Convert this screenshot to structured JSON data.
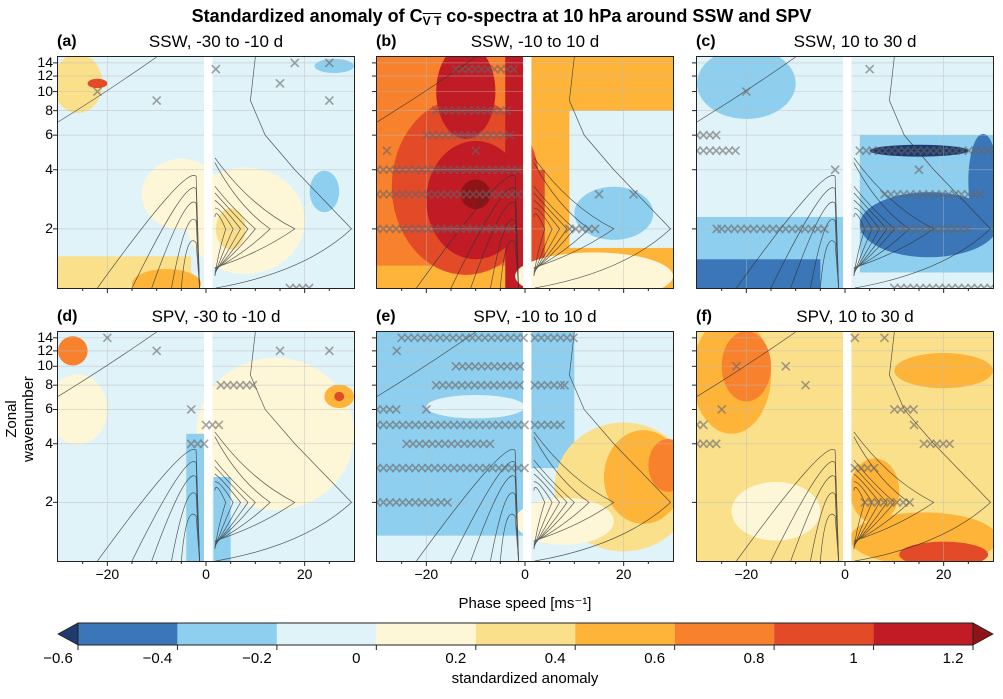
{
  "title_main": "Standardized anomaly of C",
  "title_sub": "V T",
  "title_rest": " co-spectra at 10 hPa around SSW and SPV",
  "colors": {
    "under": "#1e3a6e",
    "b-0.6": "#3a76b8",
    "b-0.4": "#8ecfef",
    "b-0.2": "#e0f3f8",
    "b0": "#fdf7d8",
    "b0.2": "#fbe08b",
    "b0.4": "#feb439",
    "b0.6": "#f8812d",
    "b0.8": "#e34a28",
    "b1": "#c11b25",
    "over": "#8f1418"
  },
  "chart_data": {
    "type": "heatmap",
    "title": "Standardized anomaly of C_VT co-spectra at 10 hPa around SSW and SPV",
    "xlabel": "Phase speed [ms⁻¹]",
    "ylabel": "Zonal wavenumber",
    "xlim": [
      -30,
      30
    ],
    "ylim": [
      1,
      15
    ],
    "yscale": "log",
    "xticks": [
      "−20",
      "0",
      "20"
    ],
    "xtick_values": [
      -20,
      0,
      20
    ],
    "yticks": [
      "2",
      "4",
      "6",
      "8",
      "10",
      "12",
      "14"
    ],
    "ytick_values": [
      2,
      4,
      6,
      8,
      10,
      12,
      14
    ],
    "colorbar": {
      "label": "standardized anomaly",
      "levels": [
        -0.6,
        -0.4,
        -0.2,
        0,
        0.2,
        0.4,
        0.6,
        0.8,
        1,
        1.2
      ],
      "tick_labels": [
        "−0.6",
        "−0.4",
        "−0.2",
        "0",
        "0.2",
        "0.4",
        "0.6",
        "0.8",
        "1",
        "1.2"
      ],
      "extend": "both"
    },
    "panels": [
      {
        "label": "(a)",
        "title": "SSW, -30 to -10 d",
        "bg": "b-0.2",
        "fields": [
          {
            "shape": "rect",
            "c": [
              -30,
              -3
            ],
            "k": [
              1,
              1.45
            ],
            "level": "b0.2"
          },
          {
            "shape": "ell",
            "c": -8,
            "k": 1.05,
            "rc": 7,
            "rk": 0.25,
            "level": "b0.4"
          },
          {
            "shape": "ell",
            "c": 8,
            "k": 2.2,
            "rc": 12,
            "rk": 0.9,
            "level": "b0"
          },
          {
            "shape": "ell",
            "c": -5,
            "k": 3,
            "rc": 8,
            "rk": 0.6,
            "level": "b0"
          },
          {
            "shape": "ell",
            "c": 5,
            "k": 2,
            "rc": 3,
            "rk": 0.35,
            "level": "b0.2"
          },
          {
            "shape": "ell",
            "c": -26,
            "k": 11,
            "rc": 5,
            "rk": 0.5,
            "level": "b0.2"
          },
          {
            "shape": "ell",
            "c": -22,
            "k": 11,
            "rc": 2,
            "rk": 0.08,
            "level": "b0.8"
          },
          {
            "shape": "ell",
            "c": 24,
            "k": 3.1,
            "rc": 3,
            "rk": 0.35,
            "level": "b-0.4"
          },
          {
            "shape": "ell",
            "c": 26,
            "k": 13.5,
            "rc": 4,
            "rk": 0.12,
            "level": "b-0.4"
          }
        ],
        "hatches": [
          {
            "k": 1,
            "c": [
              17,
              21
            ]
          }
        ],
        "marks": [
          [
            -22,
            10
          ],
          [
            -10,
            9
          ],
          [
            2,
            13
          ],
          [
            15,
            11
          ],
          [
            18,
            14
          ],
          [
            25,
            14
          ],
          [
            25,
            9
          ]
        ]
      },
      {
        "label": "(b)",
        "title": "SSW, -10 to 10 d",
        "bg": "b0.4",
        "fields": [
          {
            "shape": "rect",
            "c": [
              -30,
              0
            ],
            "k": [
              1.3,
              15
            ],
            "level": "b0.6"
          },
          {
            "shape": "ell",
            "c": -12,
            "k": 3.3,
            "rc": 15,
            "rk": 1.5,
            "level": "b0.8"
          },
          {
            "shape": "ell",
            "c": -10,
            "k": 2.8,
            "rc": 10,
            "rk": 1.0,
            "level": "b1"
          },
          {
            "shape": "ell",
            "c": -12,
            "k": 10,
            "rc": 6,
            "rk": 0.8,
            "level": "b1"
          },
          {
            "shape": "ell",
            "c": -10,
            "k": 3,
            "rc": 3,
            "rk": 0.25,
            "level": "over"
          },
          {
            "shape": "rect",
            "c": [
              -4,
              0
            ],
            "k": [
              1,
              15
            ],
            "level": "b1"
          },
          {
            "shape": "rect",
            "c": [
              1,
              4
            ],
            "k": [
              1,
              4
            ],
            "level": "b0.8"
          },
          {
            "shape": "rect",
            "c": [
              9,
              30
            ],
            "k": [
              1.6,
              8
            ],
            "level": "b-0.2"
          },
          {
            "shape": "ell",
            "c": 18,
            "k": 2.4,
            "rc": 8,
            "rk": 0.45,
            "level": "b-0.4"
          },
          {
            "shape": "ell",
            "c": 14,
            "k": 1.15,
            "rc": 16,
            "rk": 0.4,
            "level": "b0"
          }
        ],
        "hatches": [
          {
            "k": 2,
            "c": [
              -30,
              -2
            ]
          },
          {
            "k": 3,
            "c": [
              -30,
              -1
            ]
          },
          {
            "k": 4,
            "c": [
              -30,
              -1
            ]
          },
          {
            "k": 6,
            "c": [
              -20,
              -3
            ]
          },
          {
            "k": 8,
            "c": [
              -18,
              -3
            ]
          },
          {
            "k": 13,
            "c": [
              -14,
              -2
            ]
          },
          {
            "k": 2,
            "c": [
              9,
              15
            ]
          }
        ],
        "marks": [
          [
            -28,
            5
          ],
          [
            -10,
            5
          ],
          [
            15,
            3
          ],
          [
            22,
            3
          ]
        ]
      },
      {
        "label": "(c)",
        "title": "SSW, 10 to 30 d",
        "bg": "b-0.2",
        "fields": [
          {
            "shape": "rect",
            "c": [
              -30,
              0
            ],
            "k": [
              1,
              2.3
            ],
            "level": "b-0.4"
          },
          {
            "shape": "rect",
            "c": [
              -30,
              -5
            ],
            "k": [
              1,
              1.4
            ],
            "level": "b-0.6"
          },
          {
            "shape": "rect",
            "c": [
              3,
              30
            ],
            "k": [
              1.2,
              6
            ],
            "level": "b-0.4"
          },
          {
            "shape": "ell",
            "c": 17,
            "k": 2.1,
            "rc": 14,
            "rk": 0.55,
            "level": "b-0.6"
          },
          {
            "shape": "ell",
            "c": 28,
            "k": 3.5,
            "rc": 3,
            "rk": 0.8,
            "level": "b-0.6"
          },
          {
            "shape": "ell",
            "c": -20,
            "k": 11,
            "rc": 10,
            "rk": 0.6,
            "level": "b-0.4"
          },
          {
            "shape": "ell",
            "c": 15,
            "k": 5,
            "rc": 10,
            "rk": 0.1,
            "level": "under"
          }
        ],
        "hatches": [
          {
            "k": 2,
            "c": [
              -25,
              -3
            ]
          },
          {
            "k": 2,
            "c": [
              4,
              26
            ]
          },
          {
            "k": 3,
            "c": [
              8,
              28
            ]
          },
          {
            "k": 5,
            "c": [
              -30,
              -21
            ]
          },
          {
            "k": 5,
            "c": [
              3,
              30
            ]
          },
          {
            "k": 6,
            "c": [
              -30,
              -25
            ]
          },
          {
            "k": 1,
            "c": [
              10,
              30
            ]
          }
        ],
        "marks": [
          [
            -26,
            2
          ],
          [
            -2,
            4
          ],
          [
            15,
            4
          ],
          [
            -20,
            10
          ],
          [
            5,
            13
          ]
        ]
      },
      {
        "label": "(d)",
        "title": "SPV, -30 to -10 d",
        "bg": "b-0.2",
        "fields": [
          {
            "shape": "ell",
            "c": 14,
            "k": 4.5,
            "rc": 16,
            "rk": 1.3,
            "level": "b0"
          },
          {
            "shape": "ell",
            "c": -26,
            "k": 6,
            "rc": 6,
            "rk": 0.6,
            "level": "b0"
          },
          {
            "shape": "ell",
            "c": 27,
            "k": 7,
            "rc": 3,
            "rk": 0.2,
            "level": "b0.4"
          },
          {
            "shape": "ell",
            "c": 27,
            "k": 7,
            "rc": 1,
            "rk": 0.08,
            "level": "b0.8"
          },
          {
            "shape": "ell",
            "c": -27,
            "k": 12,
            "rc": 3,
            "rk": 0.25,
            "level": "b0.6"
          },
          {
            "shape": "rect",
            "c": [
              -4,
              0
            ],
            "k": [
              1,
              4.5
            ],
            "level": "b-0.4"
          },
          {
            "shape": "rect",
            "c": [
              1.5,
              5
            ],
            "k": [
              1,
              2.7
            ],
            "level": "b-0.4"
          }
        ],
        "hatches": [
          {
            "k": 4,
            "c": [
              -3,
              0
            ]
          },
          {
            "k": 5,
            "c": [
              0,
              3
            ]
          },
          {
            "k": 8,
            "c": [
              3,
              10
            ]
          }
        ],
        "marks": [
          [
            -20,
            14
          ],
          [
            -10,
            12
          ],
          [
            15,
            12
          ],
          [
            25,
            12
          ],
          [
            -3,
            6
          ]
        ]
      },
      {
        "label": "(e)",
        "title": "SPV, -10 to 10 d",
        "bg": "b-0.2",
        "fields": [
          {
            "shape": "rect",
            "c": [
              -30,
              0
            ],
            "k": [
              1.35,
              15
            ],
            "level": "b-0.4"
          },
          {
            "shape": "rect",
            "c": [
              1,
              10
            ],
            "k": [
              3,
              15
            ],
            "level": "b-0.4"
          },
          {
            "shape": "ell",
            "c": -10,
            "k": 6.2,
            "rc": 10,
            "rk": 0.2,
            "level": "b-0.2"
          },
          {
            "shape": "ell",
            "c": 20,
            "k": 2.4,
            "rc": 14,
            "rk": 1.1,
            "level": "b0.2"
          },
          {
            "shape": "ell",
            "c": 24,
            "k": 2.7,
            "rc": 8,
            "rk": 0.8,
            "level": "b0.4"
          },
          {
            "shape": "ell",
            "c": 29,
            "k": 3.1,
            "rc": 4,
            "rk": 0.45,
            "level": "b0.6"
          },
          {
            "shape": "ell",
            "c": 8,
            "k": 1.6,
            "rc": 10,
            "rk": 0.4,
            "level": "b0"
          }
        ],
        "hatches": [
          {
            "k": 2,
            "c": [
              -30,
              -15
            ]
          },
          {
            "k": 3,
            "c": [
              -30,
              0
            ]
          },
          {
            "k": 4,
            "c": [
              -24,
              -7
            ]
          },
          {
            "k": 5,
            "c": [
              -30,
              0
            ]
          },
          {
            "k": 5,
            "c": [
              2,
              8
            ]
          },
          {
            "k": 6,
            "c": [
              -30,
              -25
            ]
          },
          {
            "k": 8,
            "c": [
              -18,
              0
            ]
          },
          {
            "k": 8,
            "c": [
              2,
              8
            ]
          },
          {
            "k": 10,
            "c": [
              -14,
              0
            ]
          },
          {
            "k": 14,
            "c": [
              -25,
              0
            ]
          },
          {
            "k": 14,
            "c": [
              2,
              10
            ]
          }
        ],
        "marks": [
          [
            -20,
            6
          ],
          [
            -26,
            12
          ],
          [
            8,
            8
          ]
        ]
      },
      {
        "label": "(f)",
        "title": "SPV, 10 to 30 d",
        "bg": "b0.2",
        "fields": [
          {
            "shape": "ell",
            "c": -23,
            "k": 9,
            "rc": 8,
            "rk": 1.0,
            "level": "b0.4"
          },
          {
            "shape": "ell",
            "c": -20,
            "k": 10,
            "rc": 5,
            "rk": 0.6,
            "level": "b0.6"
          },
          {
            "shape": "ell",
            "c": -14,
            "k": 1.8,
            "rc": 9,
            "rk": 0.5,
            "level": "b0"
          },
          {
            "shape": "ell",
            "c": 16,
            "k": 1.3,
            "rc": 15,
            "rk": 0.45,
            "level": "b0.4"
          },
          {
            "shape": "ell",
            "c": 20,
            "k": 1.08,
            "rc": 9,
            "rk": 0.22,
            "level": "b0.8"
          },
          {
            "shape": "ell",
            "c": 6,
            "k": 2.3,
            "rc": 5,
            "rk": 0.55,
            "level": "b0.4"
          },
          {
            "shape": "ell",
            "c": 20,
            "k": 9.5,
            "rc": 10,
            "rk": 0.3,
            "level": "b0.4"
          }
        ],
        "hatches": [
          {
            "k": 2,
            "c": [
              4,
              14
            ]
          },
          {
            "k": 3,
            "c": [
              2,
              6
            ]
          },
          {
            "k": 4,
            "c": [
              -30,
              -26
            ]
          },
          {
            "k": 4,
            "c": [
              16,
              22
            ]
          },
          {
            "k": 5,
            "c": [
              -30,
              -28
            ]
          },
          {
            "k": 6,
            "c": [
              10,
              14
            ]
          }
        ],
        "marks": [
          [
            -12,
            10
          ],
          [
            -22,
            10
          ],
          [
            -8,
            8
          ],
          [
            2,
            14
          ],
          [
            8,
            14
          ],
          [
            14,
            5
          ],
          [
            -25,
            6
          ]
        ]
      }
    ]
  }
}
